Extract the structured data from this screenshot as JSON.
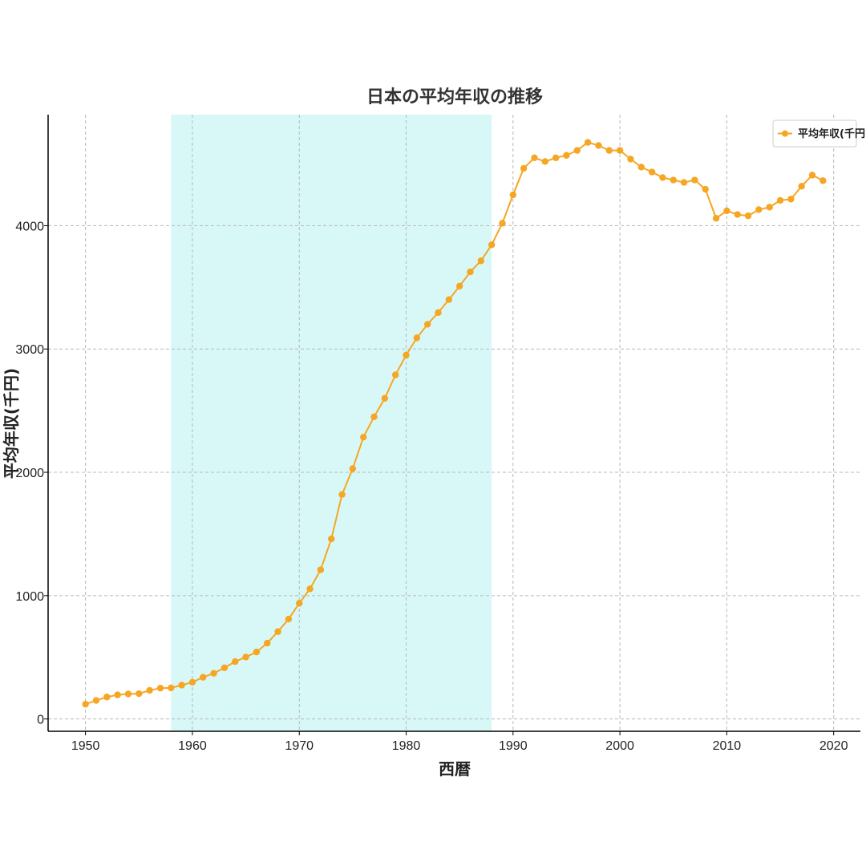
{
  "chart_data": {
    "type": "line",
    "title": "日本の平均年収の推移",
    "xlabel": "西暦",
    "ylabel": "平均年収(千円)",
    "xlim": [
      1946.5,
      2022.5
    ],
    "ylim": [
      -100,
      4900
    ],
    "x_ticks": [
      1950,
      1960,
      1970,
      1980,
      1990,
      2000,
      2010,
      2020
    ],
    "y_ticks": [
      0,
      1000,
      2000,
      3000,
      4000
    ],
    "grid": true,
    "legend_position": "top-right",
    "highlight_span": [
      1958,
      1988
    ],
    "colors": {
      "line": "#f5a623",
      "highlight": "#d8f8f8",
      "legend_border": "#cccccc"
    },
    "series": [
      {
        "name": "平均年収(千円)",
        "x": [
          1950,
          1951,
          1952,
          1953,
          1954,
          1955,
          1956,
          1957,
          1958,
          1959,
          1960,
          1961,
          1962,
          1963,
          1964,
          1965,
          1966,
          1967,
          1968,
          1969,
          1970,
          1971,
          1972,
          1973,
          1974,
          1975,
          1976,
          1977,
          1978,
          1979,
          1980,
          1981,
          1982,
          1983,
          1984,
          1985,
          1986,
          1987,
          1988,
          1989,
          1990,
          1991,
          1992,
          1993,
          1994,
          1995,
          1996,
          1997,
          1998,
          1999,
          2000,
          2001,
          2002,
          2003,
          2004,
          2005,
          2006,
          2007,
          2008,
          2009,
          2010,
          2011,
          2012,
          2013,
          2014,
          2015,
          2016,
          2017,
          2018,
          2019
        ],
        "values": [
          120,
          150,
          178,
          195,
          203,
          205,
          232,
          250,
          252,
          274,
          298,
          338,
          370,
          415,
          465,
          502,
          543,
          615,
          708,
          810,
          938,
          1055,
          1210,
          1460,
          1820,
          2030,
          2285,
          2450,
          2600,
          2790,
          2950,
          3090,
          3200,
          3295,
          3400,
          3510,
          3625,
          3715,
          3845,
          4020,
          4250,
          4465,
          4550,
          4520,
          4550,
          4570,
          4610,
          4675,
          4650,
          4610,
          4610,
          4540,
          4475,
          4435,
          4390,
          4370,
          4350,
          4370,
          4295,
          4060,
          4120,
          4090,
          4080,
          4130,
          4150,
          4205,
          4215,
          4320,
          4410,
          4365
        ]
      }
    ]
  }
}
